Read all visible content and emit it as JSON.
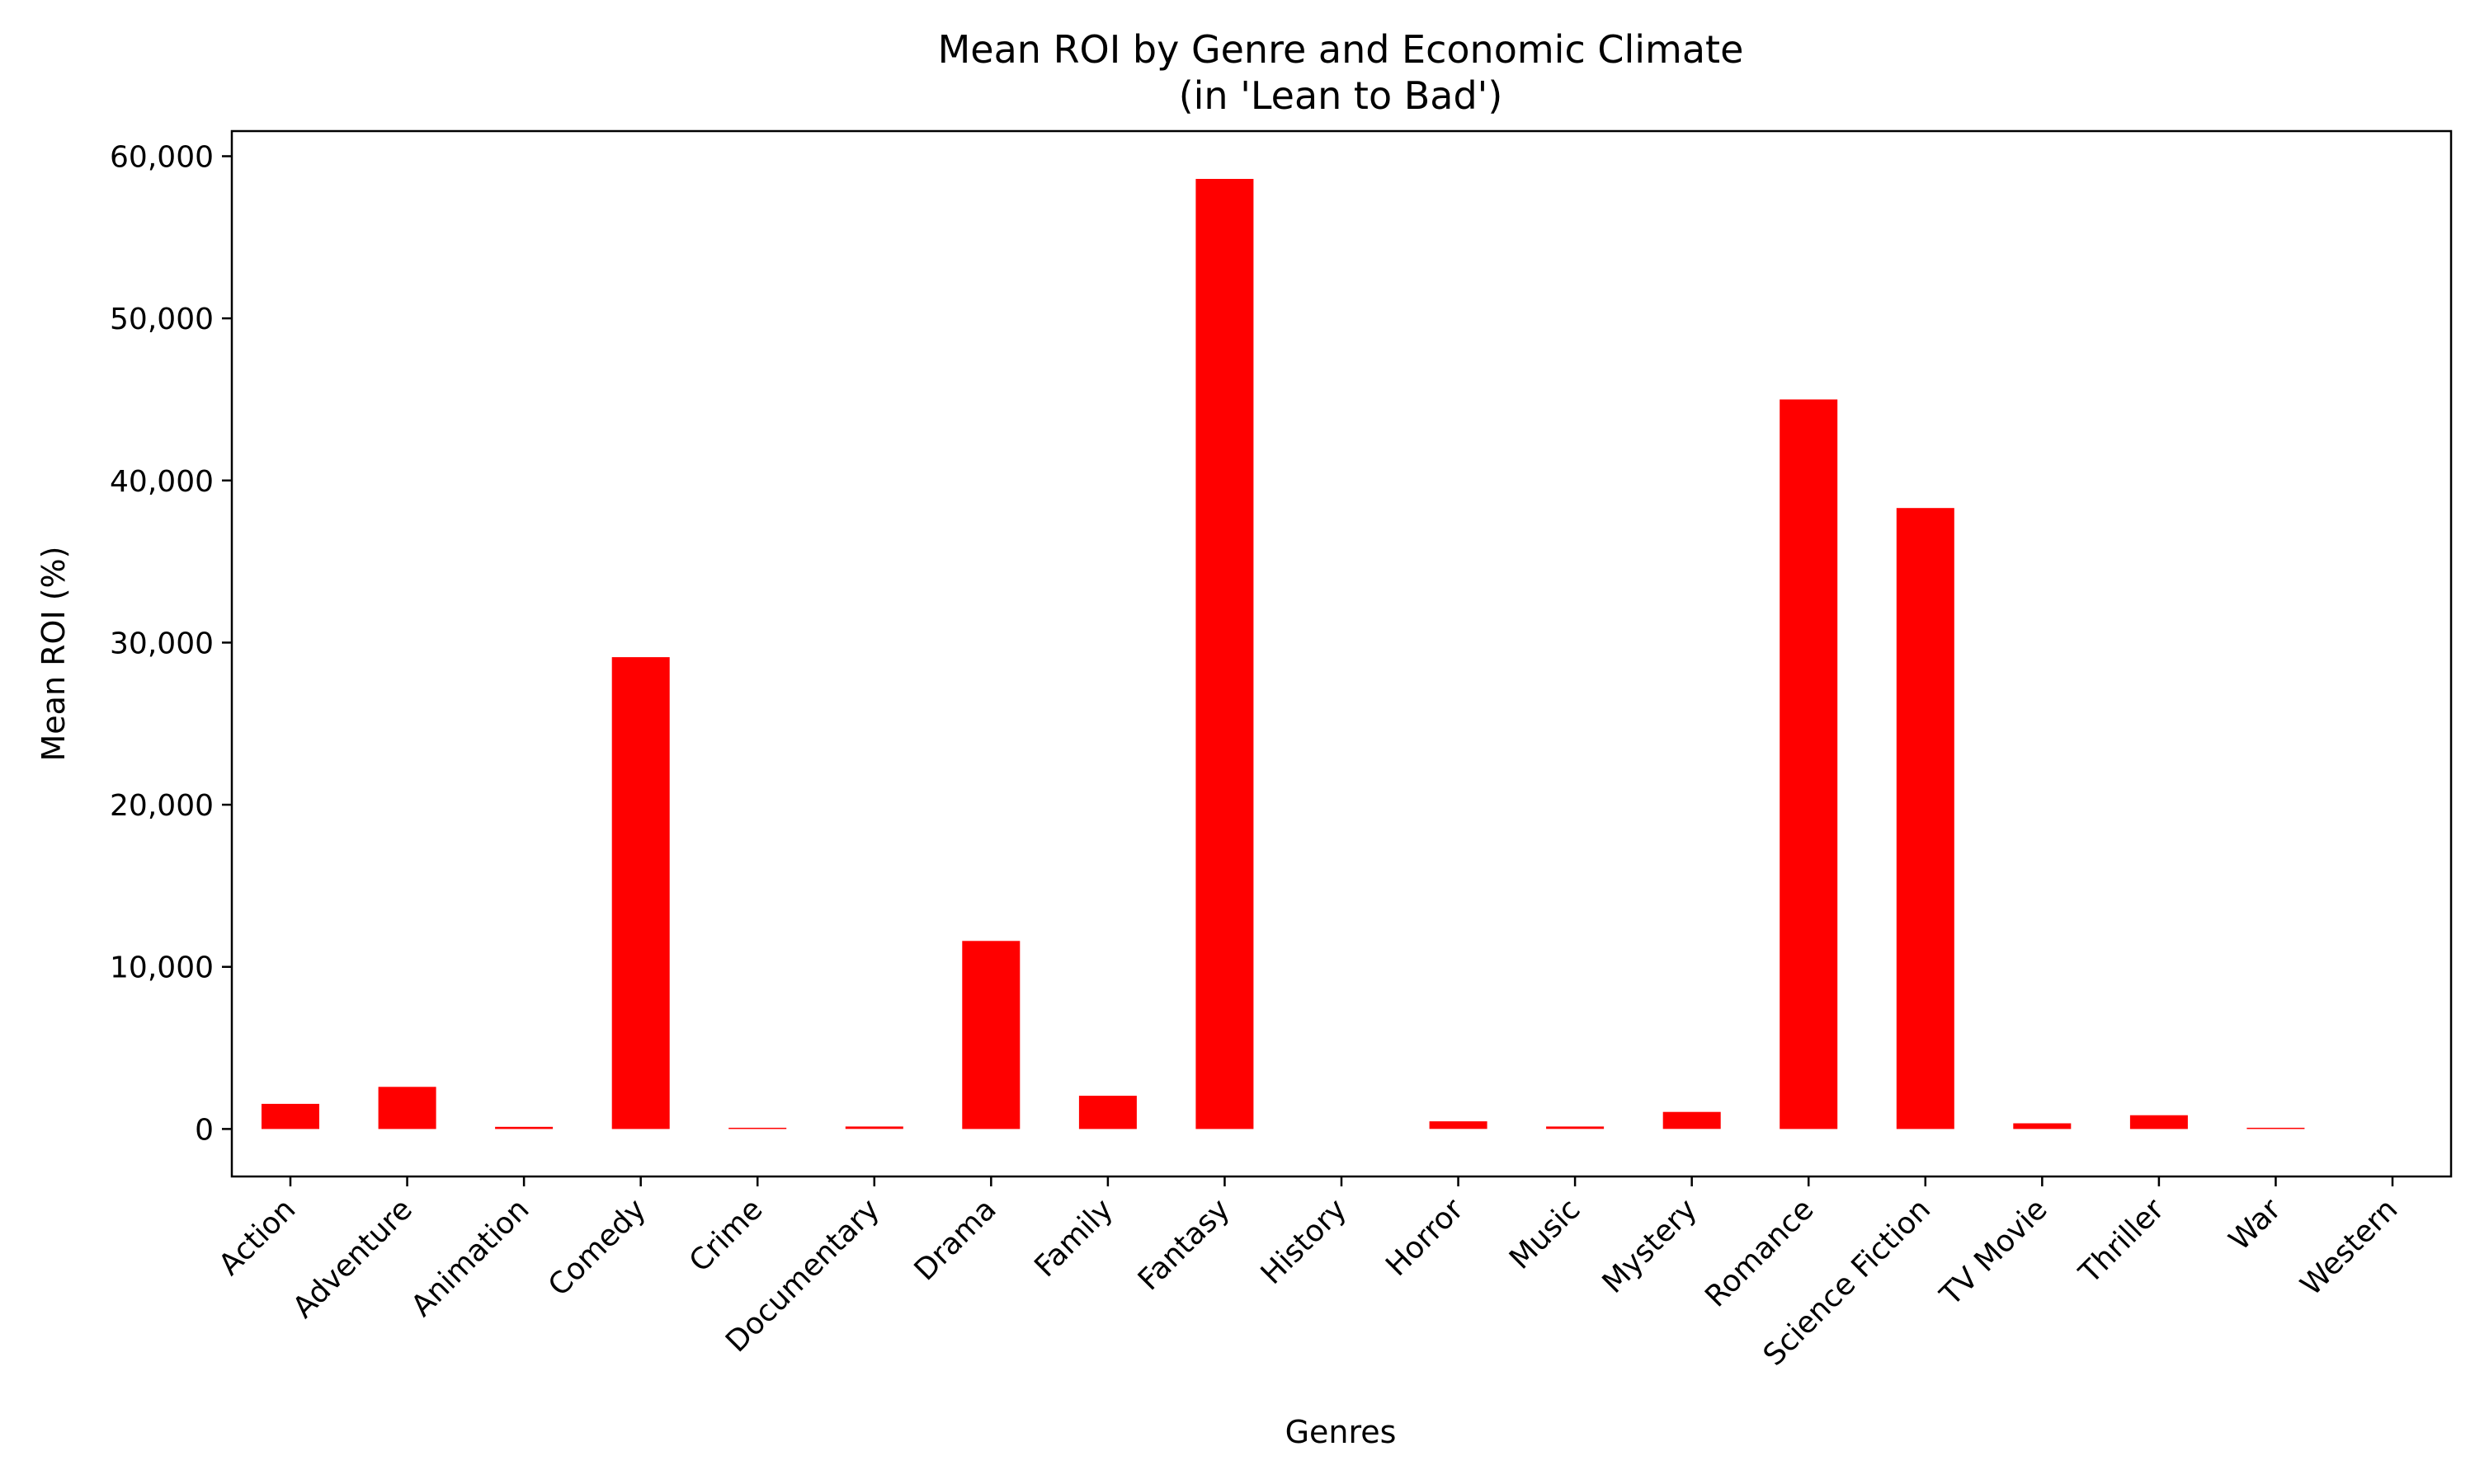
{
  "chart_data": {
    "type": "bar",
    "title_line1": "Mean ROI by Genre and Economic Climate",
    "title_line2": "(in 'Lean to Bad')",
    "xlabel": "Genres",
    "ylabel": "Mean ROI (%)",
    "categories": [
      "Action",
      "Adventure",
      "Animation",
      "Comedy",
      "Crime",
      "Documentary",
      "Drama",
      "Family",
      "Fantasy",
      "History",
      "Horror",
      "Music",
      "Mystery",
      "Romance",
      "Science Fiction",
      "TV Movie",
      "Thriller",
      "War",
      "Western"
    ],
    "values": [
      1550,
      2600,
      130,
      29100,
      60,
      150,
      11600,
      2050,
      58600,
      0,
      470,
      150,
      1050,
      45000,
      38300,
      350,
      850,
      50,
      0
    ],
    "yticks": [
      0,
      10000,
      20000,
      30000,
      40000,
      50000,
      60000
    ],
    "ytick_labels": [
      "0",
      "10,000",
      "20,000",
      "30,000",
      "40,000",
      "50,000",
      "60,000"
    ],
    "ylim": [
      -2930,
      61550
    ],
    "bar_color": "#ff0000",
    "grid": false,
    "legend": "none"
  }
}
